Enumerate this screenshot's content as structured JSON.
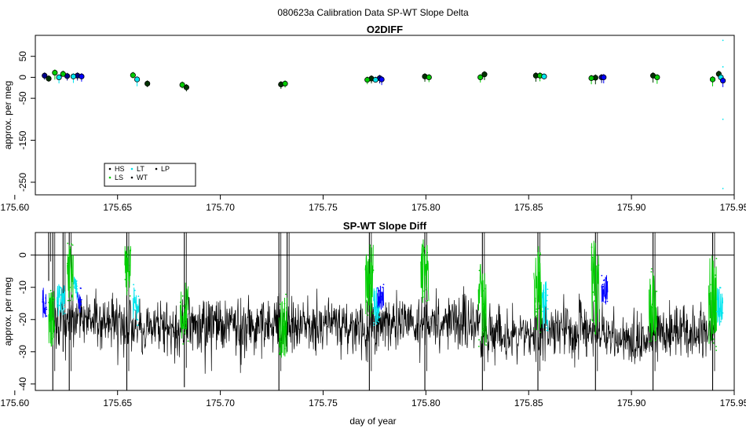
{
  "figure": {
    "title": "080623a   Calibration Data SP-WT Slope Delta",
    "xlabel": "day of year"
  },
  "chart_data": [
    {
      "type": "scatter",
      "title": "O2DIFF",
      "ylabel": "approx. per meg",
      "xlim": [
        175.61,
        175.95
      ],
      "ylim": [
        -280,
        100
      ],
      "x_ticks": [
        "175.60",
        "175.65",
        "175.70",
        "175.75",
        "175.80",
        "175.85",
        "175.90",
        "175.95"
      ],
      "x_tick_values": [
        175.6,
        175.65,
        175.7,
        175.75,
        175.8,
        175.85,
        175.9,
        175.95
      ],
      "y_ticks": [
        "50",
        "0",
        "-50",
        "-150",
        "-250"
      ],
      "y_tick_values": [
        50,
        0,
        -50,
        -150,
        -250
      ],
      "legend": {
        "position": "bottom-left",
        "entries": [
          {
            "label": "HS",
            "color": "#000000"
          },
          {
            "label": "LT",
            "color": "#00e5ee"
          },
          {
            "label": "LP",
            "color": "#000000"
          },
          {
            "label": "LS",
            "color": "#00cc00"
          },
          {
            "label": "WT",
            "color": "#000000"
          }
        ]
      },
      "series": [
        {
          "color": "#00008b",
          "points": [
            [
              175.6145,
              4
            ],
            [
              175.6255,
              3
            ],
            [
              175.6305,
              4
            ],
            [
              175.7775,
              -2
            ],
            [
              175.8855,
              0
            ]
          ]
        },
        {
          "color": "#003300",
          "points": [
            [
              175.6165,
              -3
            ],
            [
              175.6645,
              -15
            ],
            [
              175.6835,
              -24
            ],
            [
              175.7295,
              -17
            ],
            [
              175.7735,
              -3
            ],
            [
              175.7995,
              2
            ],
            [
              175.8285,
              7
            ],
            [
              175.8535,
              4
            ],
            [
              175.8825,
              -1
            ],
            [
              175.9105,
              4
            ],
            [
              175.9425,
              8
            ]
          ]
        },
        {
          "color": "#00cc00",
          "points": [
            [
              175.6195,
              11
            ],
            [
              175.6235,
              8
            ],
            [
              175.6575,
              5
            ],
            [
              175.6815,
              -18
            ],
            [
              175.7315,
              -15
            ],
            [
              175.7715,
              -6
            ],
            [
              175.8015,
              0
            ],
            [
              175.8265,
              0
            ],
            [
              175.8555,
              4
            ],
            [
              175.8805,
              -2
            ],
            [
              175.9125,
              0
            ],
            [
              175.9395,
              -5
            ]
          ]
        },
        {
          "color": "#00e5ee",
          "points": [
            [
              175.6215,
              0
            ],
            [
              175.6285,
              2
            ],
            [
              175.6595,
              -5
            ],
            [
              175.7755,
              -6
            ],
            [
              175.8575,
              2
            ],
            [
              175.9435,
              0
            ]
          ]
        },
        {
          "color": "#0000ff",
          "points": [
            [
              175.6325,
              2
            ],
            [
              175.7785,
              -5
            ],
            [
              175.8865,
              0
            ],
            [
              175.9445,
              -8
            ]
          ]
        }
      ],
      "scatter_points": [
        [
          175.9445,
          88
        ],
        [
          175.9445,
          25
        ],
        [
          175.9445,
          -100
        ],
        [
          175.9445,
          -265
        ]
      ]
    },
    {
      "type": "line",
      "title": "SP-WT Slope Diff",
      "ylabel": "approx. per meg",
      "xlim": [
        175.61,
        175.95
      ],
      "ylim": [
        -42,
        7
      ],
      "x_ticks": [
        "175.60",
        "175.65",
        "175.70",
        "175.75",
        "175.80",
        "175.85",
        "175.90",
        "175.95"
      ],
      "x_tick_values": [
        175.6,
        175.65,
        175.7,
        175.75,
        175.8,
        175.85,
        175.9,
        175.95
      ],
      "y_ticks": [
        "0",
        "-10",
        "-20",
        "-30",
        "-40"
      ],
      "y_tick_values": [
        0,
        -10,
        -20,
        -30,
        -40
      ],
      "reference_line": 0,
      "baseline_segments": [
        {
          "x": [
            175.6195,
            175.6405
          ],
          "y": -20
        },
        {
          "x": [
            175.6405,
            175.6565
          ],
          "y": -22
        },
        {
          "x": [
            175.6565,
            175.7305
          ],
          "y": -22
        },
        {
          "x": [
            175.7305,
            175.7725
          ],
          "y": -22
        },
        {
          "x": [
            175.7725,
            175.8265
          ],
          "y": -21
        },
        {
          "x": [
            175.8265,
            175.8885
          ],
          "y": -24
        },
        {
          "x": [
            175.8885,
            175.9115
          ],
          "y": -26
        },
        {
          "x": [
            175.9115,
            175.9405
          ],
          "y": -24
        }
      ],
      "spikes": [
        {
          "x": 175.6165,
          "y": [
            -8,
            10
          ]
        },
        {
          "x": 175.6185,
          "y": [
            -42,
            10
          ]
        },
        {
          "x": 175.6235,
          "y": [
            -30,
            10
          ]
        },
        {
          "x": 175.6265,
          "y": [
            -42,
            10
          ]
        },
        {
          "x": 175.6545,
          "y": [
            -42,
            10
          ]
        },
        {
          "x": 175.6825,
          "y": [
            -41,
            10
          ]
        },
        {
          "x": 175.7285,
          "y": [
            -42,
            10
          ]
        },
        {
          "x": 175.7325,
          "y": [
            -30,
            10
          ]
        },
        {
          "x": 175.7725,
          "y": [
            -42,
            10
          ]
        },
        {
          "x": 175.7995,
          "y": [
            -42,
            10
          ]
        },
        {
          "x": 175.8275,
          "y": [
            -42,
            10
          ]
        },
        {
          "x": 175.8545,
          "y": [
            -42,
            10
          ]
        },
        {
          "x": 175.8825,
          "y": [
            -42,
            10
          ]
        },
        {
          "x": 175.9105,
          "y": [
            -42,
            10
          ]
        },
        {
          "x": 175.9395,
          "y": [
            -42,
            10
          ]
        }
      ],
      "segments": [
        {
          "color": "#0000ff",
          "x": [
            175.6135,
            175.6155
          ],
          "center": -15,
          "spread": 5
        },
        {
          "color": "#00cc00",
          "x": [
            175.6165,
            175.6195
          ],
          "center": -20,
          "spread": 9
        },
        {
          "color": "#00e5ee",
          "x": [
            175.6205,
            175.6245
          ],
          "center": -14,
          "spread": 5
        },
        {
          "color": "#00cc00",
          "x": [
            175.6255,
            175.6285
          ],
          "center": -5,
          "spread": 10
        },
        {
          "color": "#00e5ee",
          "x": [
            175.6285,
            175.6305
          ],
          "center": -10,
          "spread": 4
        },
        {
          "color": "#0000ff",
          "x": [
            175.6305,
            175.6325
          ],
          "center": -14,
          "spread": 4
        },
        {
          "color": "#00cc00",
          "x": [
            175.6535,
            175.6565
          ],
          "center": -5,
          "spread": 8
        },
        {
          "color": "#00e5ee",
          "x": [
            175.6575,
            175.6605
          ],
          "center": -15,
          "spread": 7
        },
        {
          "color": "#00cc00",
          "x": [
            175.6805,
            175.6845
          ],
          "center": -18,
          "spread": 10
        },
        {
          "color": "#00cc00",
          "x": [
            175.7285,
            175.7325
          ],
          "center": -22,
          "spread": 10
        },
        {
          "color": "#00cc00",
          "x": [
            175.7705,
            175.7745
          ],
          "center": -8,
          "spread": 12
        },
        {
          "color": "#00e5ee",
          "x": [
            175.7745,
            175.7775
          ],
          "center": -16,
          "spread": 6
        },
        {
          "color": "#0000ff",
          "x": [
            175.7765,
            175.7795
          ],
          "center": -13,
          "spread": 4
        },
        {
          "color": "#00cc00",
          "x": [
            175.7975,
            175.8015
          ],
          "center": -5,
          "spread": 10
        },
        {
          "color": "#00cc00",
          "x": [
            175.8255,
            175.8295
          ],
          "center": -15,
          "spread": 14
        },
        {
          "color": "#00cc00",
          "x": [
            175.8525,
            175.8565
          ],
          "center": -10,
          "spread": 14
        },
        {
          "color": "#00e5ee",
          "x": [
            175.8565,
            175.8595
          ],
          "center": -16,
          "spread": 8
        },
        {
          "color": "#00cc00",
          "x": [
            175.8805,
            175.8845
          ],
          "center": -10,
          "spread": 15
        },
        {
          "color": "#0000ff",
          "x": [
            175.8855,
            175.8885
          ],
          "center": -11,
          "spread": 5
        },
        {
          "color": "#00cc00",
          "x": [
            175.9085,
            175.9125
          ],
          "center": -15,
          "spread": 12
        },
        {
          "color": "#00cc00",
          "x": [
            175.9375,
            175.9415
          ],
          "center": -15,
          "spread": 15
        },
        {
          "color": "#00e5ee",
          "x": [
            175.9415,
            175.9445
          ],
          "center": -16,
          "spread": 6
        }
      ]
    }
  ]
}
